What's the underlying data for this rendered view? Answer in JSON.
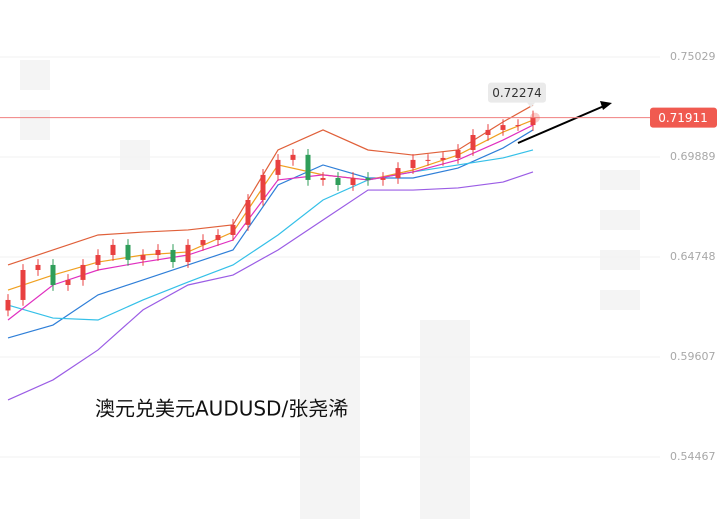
{
  "chart_data": {
    "type": "candlestick",
    "title": "澳元兑美元AUDUSD/张尧浠",
    "ylim": [
      0.5128,
      0.7796
    ],
    "yticks": [
      0.75029,
      0.69889,
      0.64748,
      0.59607,
      0.54467
    ],
    "current_price": 0.71911,
    "high_marker": 0.72274,
    "up_color": "#e84040",
    "down_color": "#2f9e5a",
    "candles": {
      "open": [
        0.62,
        0.6254,
        0.6408,
        0.6434,
        0.6331,
        0.6357,
        0.6434,
        0.6485,
        0.6537,
        0.646,
        0.6485,
        0.6511,
        0.6449,
        0.6537,
        0.6562,
        0.6588,
        0.664,
        0.6768,
        0.6897,
        0.6974,
        0.7,
        0.6871,
        0.6881,
        0.6845,
        0.6881,
        0.6871,
        0.6881,
        0.6932,
        0.6974,
        0.6974,
        0.6984,
        0.7025,
        0.7102,
        0.7128,
        0.7153,
        0.7153
      ],
      "high": [
        0.6284,
        0.6438,
        0.6464,
        0.6464,
        0.6387,
        0.6464,
        0.6515,
        0.6567,
        0.6567,
        0.6515,
        0.6541,
        0.6541,
        0.6567,
        0.6592,
        0.6618,
        0.667,
        0.6798,
        0.6927,
        0.7004,
        0.703,
        0.703,
        0.6911,
        0.6911,
        0.6911,
        0.6911,
        0.6911,
        0.6962,
        0.7004,
        0.7004,
        0.7014,
        0.7055,
        0.7132,
        0.7158,
        0.7183,
        0.7183,
        0.72274
      ],
      "low": [
        0.617,
        0.6224,
        0.6378,
        0.6301,
        0.6301,
        0.6327,
        0.6404,
        0.6455,
        0.643,
        0.643,
        0.6455,
        0.6419,
        0.6419,
        0.6507,
        0.6532,
        0.6558,
        0.661,
        0.6738,
        0.6867,
        0.6944,
        0.6841,
        0.6841,
        0.6815,
        0.6815,
        0.6841,
        0.6841,
        0.6851,
        0.6902,
        0.6944,
        0.6944,
        0.6954,
        0.6995,
        0.7072,
        0.7098,
        0.7123,
        0.7123
      ],
      "close": [
        0.6254,
        0.6408,
        0.6434,
        0.6331,
        0.6357,
        0.6434,
        0.6485,
        0.6537,
        0.646,
        0.6485,
        0.6511,
        0.6449,
        0.6537,
        0.6562,
        0.6588,
        0.664,
        0.6768,
        0.6897,
        0.6974,
        0.7,
        0.6871,
        0.6881,
        0.6845,
        0.6881,
        0.6871,
        0.6881,
        0.6932,
        0.6974,
        0.6974,
        0.6984,
        0.7025,
        0.7102,
        0.7128,
        0.7153,
        0.7153,
        0.71911
      ]
    },
    "lines": [
      {
        "color": "#e0603a",
        "x": [
          0,
          3,
          6,
          9,
          12,
          15,
          18,
          21,
          24,
          27,
          30,
          33,
          35
        ],
        "values": [
          0.6434,
          0.6511,
          0.6588,
          0.6603,
          0.6614,
          0.664,
          0.7025,
          0.7128,
          0.7025,
          0.6999,
          0.7025,
          0.7169,
          0.7256
        ]
      },
      {
        "color": "#9b5de5",
        "x": [
          0,
          3,
          6,
          9,
          12,
          15,
          18,
          21,
          24,
          27,
          30,
          33,
          35
        ],
        "values": [
          0.574,
          0.5843,
          0.5997,
          0.6203,
          0.6331,
          0.6382,
          0.6511,
          0.6665,
          0.6819,
          0.6819,
          0.683,
          0.686,
          0.6912
        ]
      },
      {
        "color": "#2f7fd8",
        "x": [
          0,
          3,
          6,
          9,
          12,
          15,
          18,
          21,
          24,
          27,
          30,
          33,
          35
        ],
        "values": [
          0.6059,
          0.6125,
          0.628,
          0.6357,
          0.6434,
          0.6511,
          0.6845,
          0.6948,
          0.6881,
          0.6881,
          0.6932,
          0.7035,
          0.7128
        ]
      },
      {
        "color": "#35c0e8",
        "x": [
          0,
          3,
          6,
          9,
          12,
          15,
          18,
          21,
          24,
          27,
          30,
          33,
          35
        ],
        "values": [
          0.6228,
          0.6161,
          0.6151,
          0.6254,
          0.6346,
          0.6434,
          0.6588,
          0.6768,
          0.6871,
          0.6912,
          0.6948,
          0.6984,
          0.7025
        ]
      },
      {
        "color": "#f0a020",
        "x": [
          0,
          3,
          6,
          9,
          12,
          15,
          18,
          21,
          24,
          27,
          30,
          33,
          35
        ],
        "values": [
          0.6305,
          0.6382,
          0.6449,
          0.6485,
          0.6501,
          0.6603,
          0.6948,
          0.6897,
          0.6871,
          0.6922,
          0.6999,
          0.7117,
          0.7179
        ]
      },
      {
        "color": "#e030c0",
        "x": [
          0,
          3,
          6,
          9,
          12,
          15,
          18,
          21,
          24,
          27,
          30,
          33,
          35
        ],
        "values": [
          0.6151,
          0.6331,
          0.6408,
          0.6449,
          0.6485,
          0.6562,
          0.6871,
          0.6897,
          0.6871,
          0.6912,
          0.6974,
          0.7076,
          0.7153
        ]
      }
    ]
  }
}
